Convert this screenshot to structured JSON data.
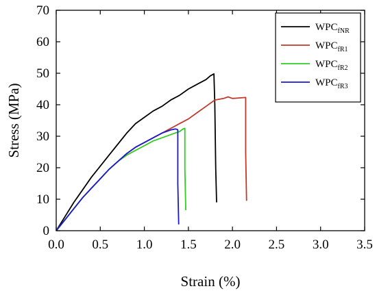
{
  "chart_data": {
    "type": "line",
    "xlabel": "Strain (%)",
    "ylabel": "Stress (MPa)",
    "xlim": [
      0,
      3.5
    ],
    "ylim": [
      0,
      70
    ],
    "x_ticks": [
      "0.0",
      "0.5",
      "1.0",
      "1.5",
      "2.0",
      "2.5",
      "3.0",
      "3.5"
    ],
    "y_ticks": [
      "0",
      "10",
      "20",
      "30",
      "40",
      "50",
      "60",
      "70"
    ],
    "grid": false,
    "legend_position": "top-right",
    "series": [
      {
        "name": "WPCfNR",
        "name_main": "WPC",
        "name_sub": "fNR",
        "color": "#000000",
        "x": [
          0,
          0.1,
          0.2,
          0.3,
          0.4,
          0.5,
          0.6,
          0.7,
          0.8,
          0.9,
          1.0,
          1.1,
          1.2,
          1.3,
          1.4,
          1.5,
          1.6,
          1.7,
          1.75,
          1.79,
          1.8,
          1.81,
          1.82
        ],
        "y": [
          0,
          4.5,
          9,
          13,
          17,
          20.5,
          24,
          27.5,
          31,
          34,
          36,
          38,
          39.5,
          41.5,
          43,
          45,
          46.5,
          48,
          49.2,
          49.8,
          40,
          20,
          9
        ]
      },
      {
        "name": "WPCfR1",
        "name_main": "WPC",
        "name_sub": "fR1",
        "color": "#c0392b",
        "x": [
          0,
          0.1,
          0.2,
          0.3,
          0.4,
          0.5,
          0.6,
          0.7,
          0.8,
          0.9,
          1.0,
          1.1,
          1.2,
          1.3,
          1.4,
          1.5,
          1.6,
          1.7,
          1.8,
          1.9,
          1.95,
          2.0,
          2.1,
          2.15,
          2.15,
          2.16
        ],
        "y": [
          0,
          3.5,
          7,
          10.5,
          13.5,
          16.5,
          19.5,
          22,
          24.5,
          26.5,
          28,
          29.5,
          31,
          32.5,
          34,
          35.5,
          37.5,
          39.5,
          41.5,
          42,
          42.5,
          42,
          42.2,
          42.3,
          25,
          9.5
        ]
      },
      {
        "name": "WPCfR2",
        "name_main": "WPC",
        "name_sub": "fR2",
        "color": "#33cc22",
        "x": [
          0,
          0.1,
          0.2,
          0.3,
          0.4,
          0.5,
          0.6,
          0.7,
          0.8,
          0.9,
          1.0,
          1.1,
          1.2,
          1.3,
          1.4,
          1.44,
          1.46,
          1.46,
          1.47
        ],
        "y": [
          0,
          3.5,
          7,
          10.5,
          13.5,
          16.5,
          19.5,
          22,
          24,
          25.5,
          27,
          28.5,
          29.5,
          30.5,
          31.5,
          32.3,
          32.5,
          20,
          6.5
        ]
      },
      {
        "name": "WPCfR3",
        "name_main": "WPC",
        "name_sub": "fR3",
        "color": "#1a1acc",
        "x": [
          0,
          0.1,
          0.2,
          0.3,
          0.4,
          0.5,
          0.6,
          0.7,
          0.8,
          0.9,
          1.0,
          1.1,
          1.2,
          1.3,
          1.35,
          1.37,
          1.38,
          1.38,
          1.39
        ],
        "y": [
          0,
          3.5,
          7,
          10.5,
          13.5,
          16.5,
          19.5,
          22,
          24.5,
          26.5,
          28,
          29.5,
          31,
          32,
          32.3,
          32.2,
          32,
          15,
          2
        ]
      }
    ]
  }
}
